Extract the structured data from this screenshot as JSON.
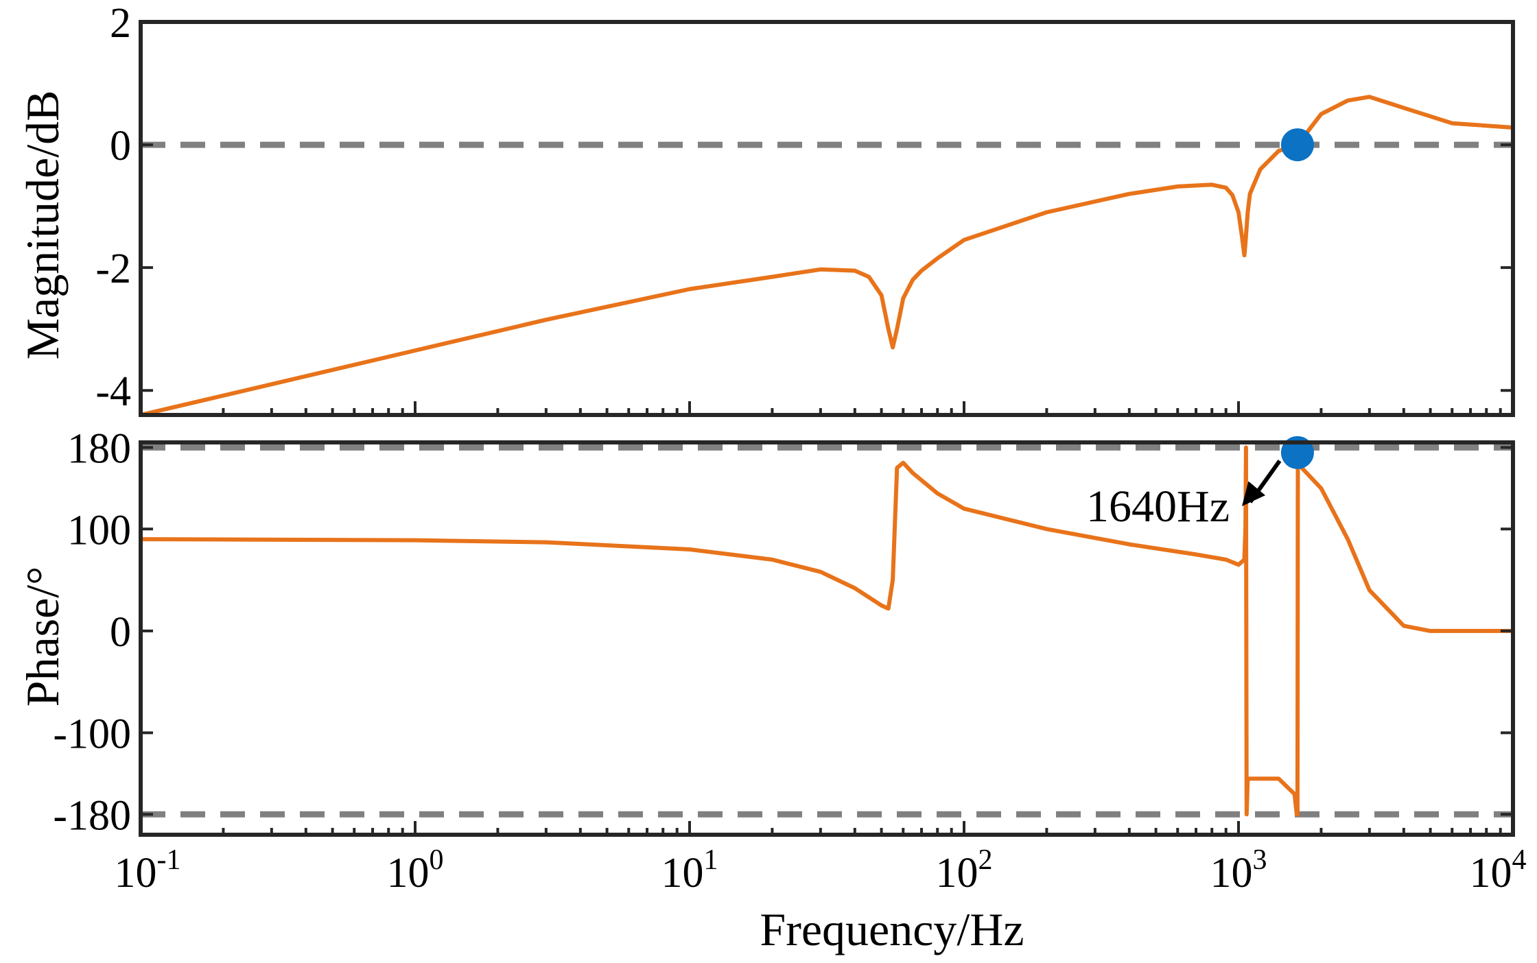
{
  "chart_data": [
    {
      "type": "line",
      "name": "magnitude",
      "xscale": "log",
      "xlim": [
        0.1,
        10000
      ],
      "ylim": [
        -4.4,
        2
      ],
      "ylabel": "Magnitude/dB",
      "yticks": [
        2,
        0,
        -2,
        -4
      ],
      "yticklabels": [
        "2",
        "0",
        "-2",
        "-4"
      ],
      "reference_lines": [
        0
      ],
      "series": [
        {
          "name": "magnitude",
          "color": "#E8731A",
          "x": [
            0.1,
            0.3,
            1,
            3,
            10,
            20,
            30,
            40,
            45,
            50,
            53,
            55,
            57,
            60,
            65,
            70,
            80,
            100,
            200,
            400,
            600,
            800,
            900,
            950,
            1000,
            1030,
            1050,
            1060,
            1080,
            1100,
            1200,
            1400,
            1640,
            2000,
            2500,
            3000,
            4000,
            6000,
            10000
          ],
          "y": [
            -4.4,
            -3.9,
            -3.35,
            -2.85,
            -2.35,
            -2.15,
            -2.03,
            -2.05,
            -2.15,
            -2.45,
            -3.0,
            -3.3,
            -3.0,
            -2.5,
            -2.2,
            -2.05,
            -1.85,
            -1.55,
            -1.1,
            -0.8,
            -0.68,
            -0.65,
            -0.7,
            -0.82,
            -1.1,
            -1.5,
            -1.8,
            -1.6,
            -1.1,
            -0.8,
            -0.4,
            -0.1,
            0.0,
            0.5,
            0.72,
            0.78,
            0.6,
            0.35,
            0.28
          ]
        }
      ],
      "marker": {
        "x": 1640,
        "y": 0,
        "color": "#0B72C4"
      }
    },
    {
      "type": "line",
      "name": "phase",
      "xscale": "log",
      "xlim": [
        0.1,
        10000
      ],
      "ylim": [
        -200,
        185
      ],
      "xlabel": "Frequency/Hz",
      "ylabel": "Phase/°",
      "yticks": [
        180,
        100,
        0,
        -100,
        -180
      ],
      "yticklabels": [
        "180",
        "100",
        "0",
        "-100",
        "-180"
      ],
      "xticks": [
        0.1,
        1,
        10,
        100,
        1000,
        10000
      ],
      "xticklabel_base": "10",
      "xticklabel_exps": [
        "-1",
        "0",
        "1",
        "2",
        "3",
        "4"
      ],
      "reference_lines": [
        180,
        -180
      ],
      "series": [
        {
          "name": "phase",
          "color": "#E8731A",
          "x": [
            0.1,
            1,
            3,
            10,
            20,
            30,
            40,
            45,
            50,
            53,
            55,
            57,
            60,
            65,
            80,
            100,
            200,
            400,
            700,
            900,
            1000,
            1050,
            1060,
            1065,
            1070,
            1080,
            1100,
            1200,
            1400,
            1600,
            1630,
            1640,
            1645,
            1650,
            1700,
            2000,
            2500,
            3000,
            4000,
            5000,
            10000
          ],
          "y": [
            90,
            89,
            87,
            80,
            70,
            58,
            42,
            33,
            25,
            22,
            50,
            160,
            165,
            155,
            135,
            120,
            100,
            85,
            75,
            70,
            65,
            70,
            100,
            180,
            -180,
            -145,
            -145,
            -145,
            -145,
            -160,
            -180,
            -180,
            175,
            170,
            160,
            140,
            90,
            40,
            5,
            0,
            0
          ]
        }
      ],
      "marker": {
        "x": 1640,
        "y": 175,
        "color": "#0B72C4"
      },
      "annotation": {
        "text": "1640Hz"
      }
    }
  ]
}
